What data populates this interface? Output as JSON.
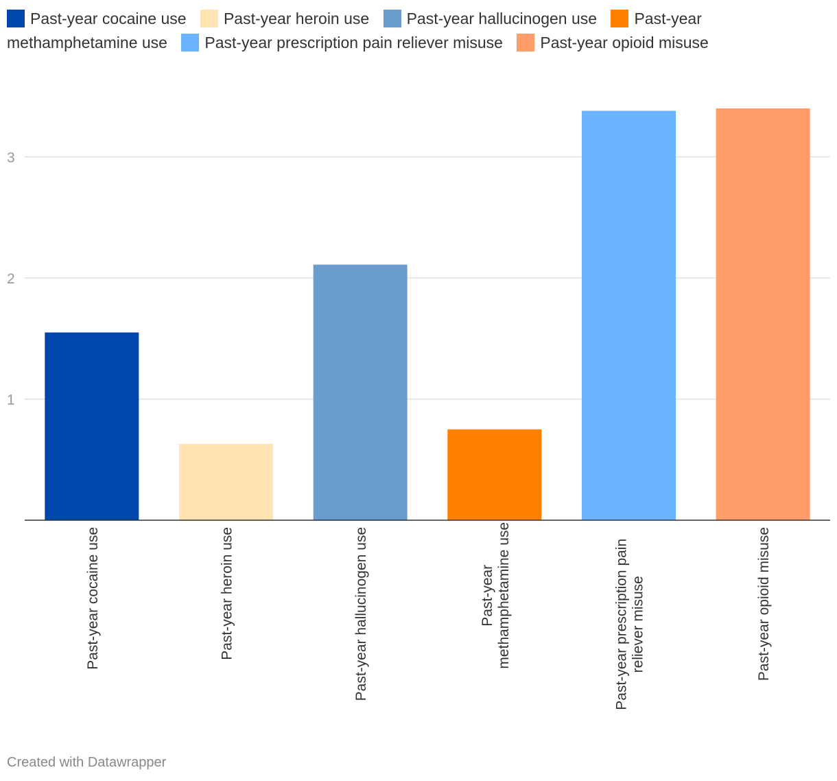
{
  "chart_data": {
    "type": "bar",
    "title": "",
    "xlabel": "",
    "ylabel": "",
    "ylim": [
      0,
      3.4
    ],
    "y_ticks": [
      "1",
      "2",
      "3"
    ],
    "y_tick_values": [
      1,
      2,
      3
    ],
    "grid": true,
    "legend_position": "top",
    "categories": [
      "Past-year cocaine use",
      "Past-year heroin use",
      "Past-year hallucinogen use",
      "Past-year methamphetamine use",
      "Past-year prescription pain reliever misuse",
      "Past-year opioid misuse"
    ],
    "category_label_lines": [
      [
        "Past-year cocaine use"
      ],
      [
        "Past-year heroin use"
      ],
      [
        "Past-year hallucinogen use"
      ],
      [
        "Past-year",
        "methamphetamine use"
      ],
      [
        "Past-year prescription pain",
        "reliever misuse"
      ],
      [
        "Past-year opioid misuse"
      ]
    ],
    "values": [
      1.55,
      0.63,
      2.11,
      0.75,
      3.38,
      3.4
    ],
    "colors": [
      "#0047ab",
      "#ffe3b3",
      "#6a9ccd",
      "#ff7f00",
      "#6ab4ff",
      "#ff9e6b"
    ],
    "legend": [
      {
        "label": "Past-year cocaine use",
        "color": "#0047ab"
      },
      {
        "label": "Past-year heroin use",
        "color": "#ffe3b3"
      },
      {
        "label": "Past-year hallucinogen use",
        "color": "#6a9ccd"
      },
      {
        "label": "Past-year methamphetamine use",
        "color": "#ff7f00"
      },
      {
        "label": "Past-year prescription pain reliever misuse",
        "color": "#6ab4ff"
      },
      {
        "label": "Past-year opioid misuse",
        "color": "#ff9e6b"
      }
    ]
  },
  "footer": {
    "credit": "Created with Datawrapper"
  }
}
